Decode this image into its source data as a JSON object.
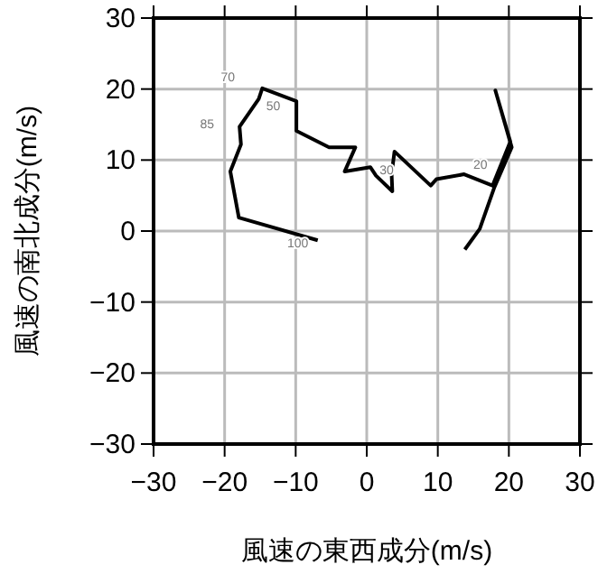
{
  "chart_data": {
    "type": "line",
    "xlabel": "風速の東西成分(m/s)",
    "ylabel": "風速の南北成分(m/s)",
    "xlim": [
      -30,
      30
    ],
    "ylim": [
      -30,
      30
    ],
    "xticks": [
      -30,
      -20,
      -10,
      0,
      10,
      20,
      30
    ],
    "yticks": [
      -30,
      -20,
      -10,
      0,
      10,
      20,
      30
    ],
    "grid": true,
    "series": [
      {
        "color": "#000000",
        "x": [
          -6.9,
          -18.0,
          -19.2,
          -17.7,
          -17.9,
          -15.2,
          -14.7,
          -9.9,
          -9.9,
          -5.3,
          -1.6,
          -3.1,
          0.5,
          1.3,
          3.6,
          3.5,
          3.9,
          9.0,
          9.8,
          13.7,
          17.7,
          20.2,
          18.1,
          20.4,
          17.9,
          15.9,
          13.8
        ],
        "values": [
          -1.3,
          1.9,
          8.4,
          12.2,
          14.7,
          18.6,
          20.1,
          18.3,
          14.1,
          11.8,
          11.8,
          8.4,
          9.0,
          7.8,
          5.6,
          8.0,
          11.2,
          6.4,
          7.3,
          8.0,
          6.4,
          12.6,
          19.8,
          11.8,
          6.0,
          0.3,
          -2.6
        ]
      }
    ],
    "annotations": [
      {
        "text": "100",
        "x": -6.9,
        "y": -1.3
      },
      {
        "text": "85",
        "x": -17.9,
        "y": 14.7
      },
      {
        "text": "70",
        "x": -14.7,
        "y": 20.1
      },
      {
        "text": "50",
        "x": -15.2,
        "y": 18.6
      },
      {
        "text": "30",
        "x": 0.5,
        "y": 9.0
      },
      {
        "text": "20",
        "x": 13.7,
        "y": 8.0
      }
    ]
  }
}
